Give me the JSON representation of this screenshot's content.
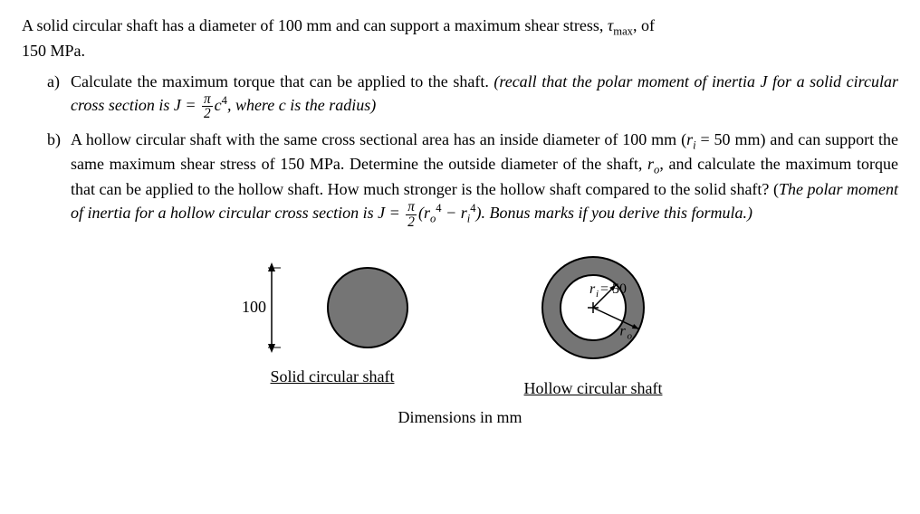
{
  "intro": {
    "line1_a": "A solid circular shaft has a diameter of 100 mm and can support a maximum shear stress, ",
    "tau": "τ",
    "tau_sub": "max",
    "line1_b": ", of",
    "line2": "150 MPa."
  },
  "a": {
    "marker": "a)",
    "t1": "Calculate the maximum torque that can be applied to the shaft. ",
    "it1": "(recall that the polar moment of inertia J for a solid circular cross section is J = ",
    "frac_num": "π",
    "frac_den": "2",
    "c4_base": "c",
    "c4_exp": "4",
    "it2": ", where c is the radius)"
  },
  "b": {
    "marker": "b)",
    "t1": "A hollow circular shaft with the same cross sectional area has an inside diameter of 100 mm (",
    "ri": "r",
    "ri_sub": "i",
    "t2": " = 50 mm) and can support the same maximum shear stress of 150 MPa. Determine the outside diameter of the shaft, ",
    "ro": "r",
    "ro_sub": "o",
    "t3": ", and calculate the maximum torque that can be applied to the hollow shaft. How much stronger is the hollow shaft compared to the solid shaft? (",
    "it1": "The polar moment of inertia for a hollow circular cross section is J = ",
    "frac_num": "π",
    "frac_den": "2",
    "paren_open": "(",
    "ro4_base": "r",
    "ro4_sub": "o",
    "ro4_exp": "4",
    "minus": " − ",
    "ri4_base": "r",
    "ri4_sub": "i",
    "ri4_exp": "4",
    "paren_close": "). ",
    "it2": "Bonus marks if you derive this formula.)"
  },
  "fig": {
    "dim_100": "100",
    "ri_label_a": "r",
    "ri_label_sub": "i",
    "ri_label_b": " = 50",
    "ro_label_a": "r",
    "ro_label_sub": "o",
    "solid_caption": "Solid circular shaft",
    "hollow_caption": "Hollow circular shaft",
    "dimensions_caption": "Dimensions in mm",
    "solid": {
      "radius": 44,
      "fill": "#757575",
      "stroke": "#000000",
      "stroke_width": 2
    },
    "hollow": {
      "ro": 56,
      "ri": 36,
      "fill": "#757575",
      "stroke": "#000000",
      "stroke_width": 2,
      "inner_fill": "#ffffff"
    },
    "arrow": {
      "length": 88,
      "stroke": "#000000"
    }
  }
}
